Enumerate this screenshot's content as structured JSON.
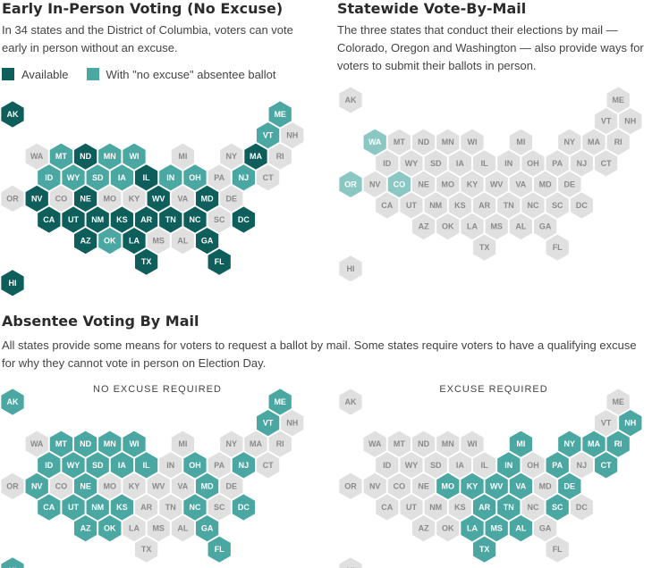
{
  "colors": {
    "available": "#0e5f5b",
    "no_excuse": "#4aa7a1",
    "mail_state": "#8cc8c3",
    "neutral": "#e0e0e0",
    "neutral_text": "#8a8a8a",
    "highlight_text": "#ffffff"
  },
  "sections": {
    "early": {
      "title": "Early In-Person Voting (No Excuse)",
      "description": "In 34 states and the District of Columbia, voters can vote early in person without an excuse.",
      "legend": [
        {
          "label": "Available",
          "color": "#0e5f5b"
        },
        {
          "label": "With \"no excuse\" absentee ballot",
          "color": "#4aa7a1"
        }
      ]
    },
    "mail": {
      "title": "Statewide Vote-By-Mail",
      "description": "The three states that conduct their elections by mail — Colorado, Oregon and Washington — also provide ways for voters to submit their ballots in person."
    },
    "absentee": {
      "title": "Absentee Voting By Mail",
      "description": "All states provide some means for voters to request a ballot by mail. Some states require voters to have a qualifying excuse for why they cannot vote in person on Election Day.",
      "no_excuse_label": "NO EXCUSE REQUIRED",
      "excuse_label": "EXCUSE REQUIRED"
    }
  },
  "maps": {
    "early": {
      "status": {
        "AK": "available",
        "HI": "available",
        "ND": "available",
        "IL": "available",
        "MA": "available",
        "NE": "available",
        "NV": "available",
        "WV": "available",
        "MD": "available",
        "DC": "available",
        "CA": "available",
        "UT": "available",
        "NM": "available",
        "KS": "available",
        "AR": "available",
        "TN": "available",
        "NC": "available",
        "AZ": "available",
        "LA": "available",
        "GA": "available",
        "TX": "available",
        "FL": "available",
        "ME": "no_excuse",
        "VT": "no_excuse",
        "MT": "no_excuse",
        "MN": "no_excuse",
        "WI": "no_excuse",
        "ID": "no_excuse",
        "WY": "no_excuse",
        "SD": "no_excuse",
        "IA": "no_excuse",
        "IN": "no_excuse",
        "OH": "no_excuse",
        "NJ": "no_excuse",
        "OK": "no_excuse"
      }
    },
    "mail": {
      "status": {
        "WA": "mail_state",
        "OR": "mail_state",
        "CO": "mail_state"
      }
    },
    "no_excuse": {
      "status": {
        "AK": "no_excuse",
        "HI": "no_excuse",
        "ME": "no_excuse",
        "VT": "no_excuse",
        "MT": "no_excuse",
        "ND": "no_excuse",
        "MN": "no_excuse",
        "WI": "no_excuse",
        "ID": "no_excuse",
        "WY": "no_excuse",
        "SD": "no_excuse",
        "IA": "no_excuse",
        "IL": "no_excuse",
        "OH": "no_excuse",
        "NJ": "no_excuse",
        "NV": "no_excuse",
        "NE": "no_excuse",
        "MD": "no_excuse",
        "CA": "no_excuse",
        "UT": "no_excuse",
        "NM": "no_excuse",
        "KS": "no_excuse",
        "NC": "no_excuse",
        "DC": "no_excuse",
        "AZ": "no_excuse",
        "OK": "no_excuse",
        "GA": "no_excuse",
        "FL": "no_excuse"
      }
    },
    "excuse": {
      "status": {
        "NH": "no_excuse",
        "MI": "no_excuse",
        "NY": "no_excuse",
        "MA": "no_excuse",
        "RI": "no_excuse",
        "IN": "no_excuse",
        "PA": "no_excuse",
        "CT": "no_excuse",
        "MO": "no_excuse",
        "KY": "no_excuse",
        "WV": "no_excuse",
        "VA": "no_excuse",
        "DE": "no_excuse",
        "AR": "no_excuse",
        "TN": "no_excuse",
        "SC": "no_excuse",
        "LA": "no_excuse",
        "MS": "no_excuse",
        "AL": "no_excuse",
        "TX": "no_excuse"
      }
    }
  },
  "states": [
    {
      "abbr": "AK",
      "row": 0,
      "col": 0
    },
    {
      "abbr": "ME",
      "row": 0,
      "col": 11
    },
    {
      "abbr": "VT",
      "row": 1,
      "col": 10
    },
    {
      "abbr": "NH",
      "row": 1,
      "col": 11
    },
    {
      "abbr": "WA",
      "row": 2,
      "col": 1
    },
    {
      "abbr": "MT",
      "row": 2,
      "col": 2
    },
    {
      "abbr": "ND",
      "row": 2,
      "col": 3
    },
    {
      "abbr": "MN",
      "row": 2,
      "col": 4
    },
    {
      "abbr": "WI",
      "row": 2,
      "col": 5
    },
    {
      "abbr": "MI",
      "row": 2,
      "col": 7
    },
    {
      "abbr": "NY",
      "row": 2,
      "col": 9
    },
    {
      "abbr": "MA",
      "row": 2,
      "col": 10
    },
    {
      "abbr": "RI",
      "row": 2,
      "col": 11
    },
    {
      "abbr": "ID",
      "row": 3,
      "col": 1
    },
    {
      "abbr": "WY",
      "row": 3,
      "col": 2
    },
    {
      "abbr": "SD",
      "row": 3,
      "col": 3
    },
    {
      "abbr": "IA",
      "row": 3,
      "col": 4
    },
    {
      "abbr": "IL",
      "row": 3,
      "col": 5
    },
    {
      "abbr": "IN",
      "row": 3,
      "col": 6
    },
    {
      "abbr": "OH",
      "row": 3,
      "col": 7
    },
    {
      "abbr": "PA",
      "row": 3,
      "col": 8
    },
    {
      "abbr": "NJ",
      "row": 3,
      "col": 9
    },
    {
      "abbr": "CT",
      "row": 3,
      "col": 10
    },
    {
      "abbr": "OR",
      "row": 4,
      "col": 0
    },
    {
      "abbr": "NV",
      "row": 4,
      "col": 1
    },
    {
      "abbr": "CO",
      "row": 4,
      "col": 2
    },
    {
      "abbr": "NE",
      "row": 4,
      "col": 3
    },
    {
      "abbr": "MO",
      "row": 4,
      "col": 4
    },
    {
      "abbr": "KY",
      "row": 4,
      "col": 5
    },
    {
      "abbr": "WV",
      "row": 4,
      "col": 6
    },
    {
      "abbr": "VA",
      "row": 4,
      "col": 7
    },
    {
      "abbr": "MD",
      "row": 4,
      "col": 8
    },
    {
      "abbr": "DE",
      "row": 4,
      "col": 9
    },
    {
      "abbr": "CA",
      "row": 5,
      "col": 1
    },
    {
      "abbr": "UT",
      "row": 5,
      "col": 2
    },
    {
      "abbr": "NM",
      "row": 5,
      "col": 3
    },
    {
      "abbr": "KS",
      "row": 5,
      "col": 4
    },
    {
      "abbr": "AR",
      "row": 5,
      "col": 5
    },
    {
      "abbr": "TN",
      "row": 5,
      "col": 6
    },
    {
      "abbr": "NC",
      "row": 5,
      "col": 7
    },
    {
      "abbr": "SC",
      "row": 5,
      "col": 8
    },
    {
      "abbr": "DC",
      "row": 5,
      "col": 9
    },
    {
      "abbr": "AZ",
      "row": 6,
      "col": 3
    },
    {
      "abbr": "OK",
      "row": 6,
      "col": 4
    },
    {
      "abbr": "LA",
      "row": 6,
      "col": 5
    },
    {
      "abbr": "MS",
      "row": 6,
      "col": 6
    },
    {
      "abbr": "AL",
      "row": 6,
      "col": 7
    },
    {
      "abbr": "GA",
      "row": 6,
      "col": 8
    },
    {
      "abbr": "TX",
      "row": 7,
      "col": 5
    },
    {
      "abbr": "FL",
      "row": 7,
      "col": 8
    },
    {
      "abbr": "HI",
      "row": 8,
      "col": 0
    }
  ]
}
